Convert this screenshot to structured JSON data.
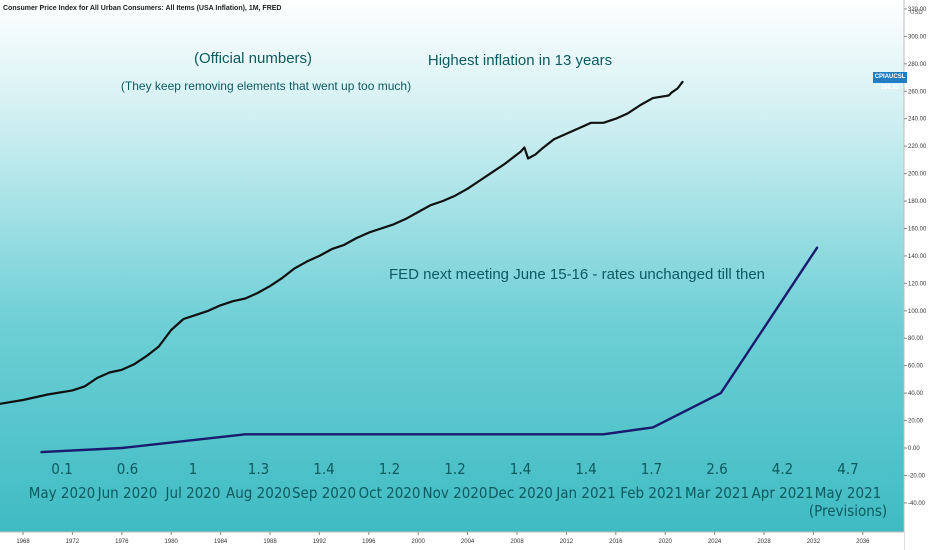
{
  "chart_title": "Consumer Price Index for All Urban Consumers: All Items (USA Inflation), 1M, FRED",
  "currency": "USD",
  "current_value": {
    "symbol": "CPIAUCSL",
    "value": "266.83"
  },
  "annotations": {
    "official": "(Official numbers)",
    "removing": "(They keep removing elements that went up too much)",
    "highest": "Highest inflation in 13 years",
    "fed": "FED next meeting June 15-16 - rates unchanged till then"
  },
  "monthly_labels": [
    {
      "value": "0.1",
      "month": "May 2020"
    },
    {
      "value": "0.6",
      "month": "Jun 2020"
    },
    {
      "value": "1",
      "month": "Jul 2020"
    },
    {
      "value": "1.3",
      "month": "Aug 2020"
    },
    {
      "value": "1.4",
      "month": "Sep 2020"
    },
    {
      "value": "1.2",
      "month": "Oct 2020"
    },
    {
      "value": "1.2",
      "month": "Nov 2020"
    },
    {
      "value": "1.4",
      "month": "Dec 2020"
    },
    {
      "value": "1.4",
      "month": "Jan 2021"
    },
    {
      "value": "1.7",
      "month": "Feb 2021"
    },
    {
      "value": "2.6",
      "month": "Mar 2021"
    },
    {
      "value": "4.2",
      "month": "Apr 2021"
    },
    {
      "value": "4.7",
      "month": "May 2021"
    }
  ],
  "previsions_note": "(Previsions)",
  "colors": {
    "cpi_line": "#111111",
    "drawn_line": "#1a1a6e",
    "text": "#0d5a5f",
    "badge": "#1f7ec4"
  },
  "chart_data": {
    "type": "line",
    "title": "Consumer Price Index for All Urban Consumers: All Items (USA Inflation), 1M, FRED",
    "y_ticks": [
      -40,
      -20,
      0,
      20,
      40,
      60,
      80,
      100,
      120,
      140,
      160,
      180,
      200,
      220,
      240,
      260,
      280,
      300,
      320
    ],
    "y_tick_labels": [
      "-40.00",
      "-20.00",
      "0.00",
      "20.00",
      "40.00",
      "60.00",
      "80.00",
      "100.00",
      "120.00",
      "140.00",
      "160.00",
      "180.00",
      "200.00",
      "220.00",
      "240.00",
      "260.00",
      "280.00",
      "300.00",
      "320.00"
    ],
    "x_ticks": [
      1968,
      1972,
      1976,
      1980,
      1984,
      1988,
      1992,
      1996,
      2000,
      2004,
      2008,
      2012,
      2016,
      2020,
      2024,
      2028,
      2032,
      2036
    ],
    "xlim": [
      1966,
      2038
    ],
    "ylim": [
      -45,
      325
    ],
    "series": [
      {
        "name": "CPIAUCSL",
        "x": [
          1966,
          1968,
          1970,
          1972,
          1973,
          1974,
          1975,
          1976,
          1977,
          1978,
          1979,
          1980,
          1981,
          1982,
          1983,
          1984,
          1985,
          1986,
          1987,
          1988,
          1989,
          1990,
          1991,
          1992,
          1993,
          1994,
          1995,
          1996,
          1997,
          1998,
          1999,
          2000,
          2001,
          2002,
          2003,
          2004,
          2005,
          2006,
          2007,
          2008.3,
          2008.6,
          2008.9,
          2009.5,
          2010,
          2011,
          2012,
          2013,
          2014,
          2015,
          2016,
          2017,
          2018,
          2019,
          2020.3,
          2020.5,
          2021.0,
          2021.4
        ],
        "y": [
          32,
          35,
          39,
          42,
          45,
          51,
          55,
          57,
          61,
          67,
          74,
          86,
          94,
          97,
          100,
          104,
          107,
          109,
          113,
          118,
          124,
          131,
          136,
          140,
          145,
          148,
          153,
          157,
          160,
          163,
          167,
          172,
          177,
          180,
          184,
          189,
          195,
          201,
          207,
          216,
          219,
          211,
          214,
          218,
          225,
          229,
          233,
          237,
          237,
          240,
          244,
          250,
          255,
          257,
          259,
          262,
          266.83
        ]
      },
      {
        "x": [
          1969.5,
          1976,
          1986,
          2015,
          2019,
          2024.5,
          2032.3
        ],
        "y": [
          -3,
          0,
          10,
          10,
          15,
          40,
          146
        ]
      }
    ]
  }
}
